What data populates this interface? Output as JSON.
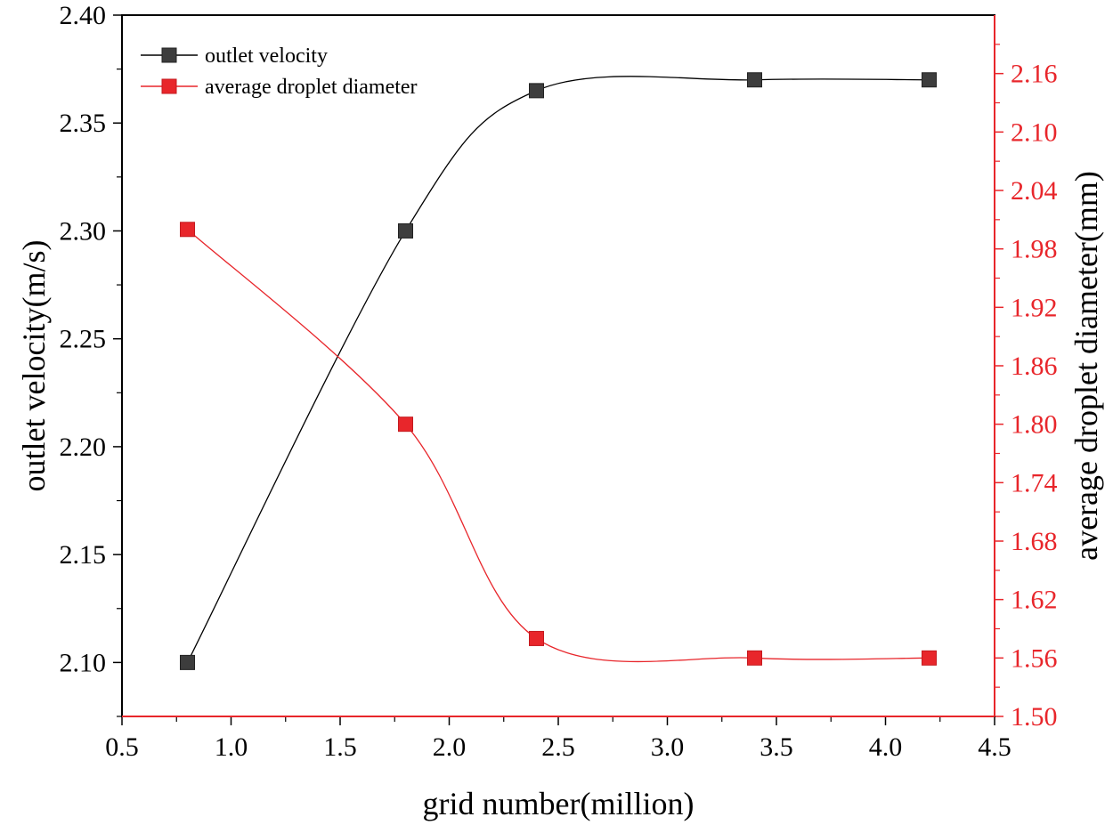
{
  "chart_data": {
    "type": "line",
    "x": [
      0.8,
      1.8,
      2.4,
      3.4,
      4.2
    ],
    "xlabel": "grid number(million)",
    "xlim": [
      0.5,
      4.5
    ],
    "xticks": [
      0.5,
      1.0,
      1.5,
      2.0,
      2.5,
      3.0,
      3.5,
      4.0,
      4.5
    ],
    "xtick_labels": [
      "0.5",
      "1.0",
      "1.5",
      "2.0",
      "2.5",
      "3.0",
      "3.5",
      "4.0",
      "4.5"
    ],
    "y_left": {
      "label": "outlet velocity(m/s)",
      "lim": [
        2.075,
        2.4
      ],
      "ticks": [
        2.1,
        2.15,
        2.2,
        2.25,
        2.3,
        2.35,
        2.4
      ],
      "tick_labels": [
        "2.10",
        "2.15",
        "2.20",
        "2.25",
        "2.30",
        "2.35",
        "2.40"
      ],
      "color": "#000000"
    },
    "y_right": {
      "label": "average droplet diameter(mm)",
      "lim": [
        1.5,
        2.22
      ],
      "ticks": [
        1.5,
        1.56,
        1.62,
        1.68,
        1.74,
        1.8,
        1.86,
        1.92,
        1.98,
        2.04,
        2.1,
        2.16
      ],
      "tick_labels": [
        "1.50",
        "1.56",
        "1.62",
        "1.68",
        "1.74",
        "1.80",
        "1.86",
        "1.92",
        "1.98",
        "2.04",
        "2.10",
        "2.16"
      ],
      "color": "#e8262b"
    },
    "series": [
      {
        "name": "outlet velocity",
        "axis": "left",
        "values": [
          2.1,
          2.3,
          2.365,
          2.37,
          2.37
        ],
        "line_color": "#000000",
        "marker_color": "#3d3d3d"
      },
      {
        "name": "average droplet diameter",
        "axis": "right",
        "values": [
          2.0,
          1.8,
          1.58,
          1.56,
          1.56
        ],
        "line_color": "#e8262b",
        "marker_color": "#e8262b"
      }
    ],
    "legend": "top-left"
  }
}
